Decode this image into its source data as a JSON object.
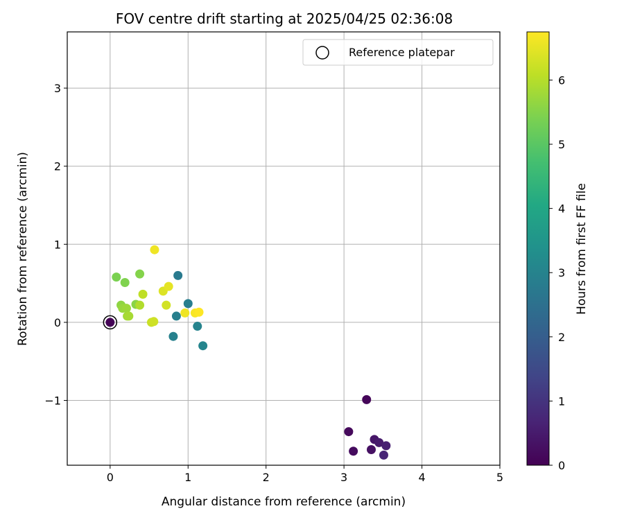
{
  "chart_data": {
    "type": "scatter",
    "title": "FOV centre drift starting at 2025/04/25 02:36:08",
    "xlabel": "Angular distance from reference (arcmin)",
    "ylabel": "Rotation from reference (arcmin)",
    "xlim": [
      -0.55,
      5.0
    ],
    "ylim": [
      -1.83,
      3.72
    ],
    "xticks": [
      0,
      1,
      2,
      3,
      4,
      5
    ],
    "yticks": [
      -1,
      0,
      1,
      2,
      3
    ],
    "xtick_labels": [
      "0",
      "1",
      "2",
      "3",
      "4",
      "5"
    ],
    "ytick_labels": [
      "−1",
      "0",
      "1",
      "2",
      "3"
    ],
    "grid": true,
    "legend": {
      "position": "top-right",
      "entries": [
        "Reference platepar"
      ]
    },
    "colorbar": {
      "label": "Hours from first FF file",
      "colormap": "viridis",
      "range": [
        0,
        6.75
      ],
      "ticks": [
        0,
        1,
        2,
        3,
        4,
        5,
        6
      ],
      "tick_labels": [
        "0",
        "1",
        "2",
        "3",
        "4",
        "5",
        "6"
      ]
    },
    "reference_point": {
      "x": 0,
      "y": 0,
      "value": 0
    },
    "points": [
      {
        "x": 0.0,
        "y": 0.0,
        "value": 0.05
      },
      {
        "x": 3.29,
        "y": -0.99,
        "value": 0.1
      },
      {
        "x": 3.06,
        "y": -1.4,
        "value": 0.15
      },
      {
        "x": 3.12,
        "y": -1.65,
        "value": 0.2
      },
      {
        "x": 3.35,
        "y": -1.63,
        "value": 0.3
      },
      {
        "x": 3.39,
        "y": -1.5,
        "value": 0.4
      },
      {
        "x": 3.45,
        "y": -1.54,
        "value": 0.5
      },
      {
        "x": 3.54,
        "y": -1.58,
        "value": 0.6
      },
      {
        "x": 3.51,
        "y": -1.7,
        "value": 0.7
      },
      {
        "x": 0.87,
        "y": 0.6,
        "value": 2.75
      },
      {
        "x": 1.0,
        "y": 0.24,
        "value": 2.85
      },
      {
        "x": 0.85,
        "y": 0.08,
        "value": 2.9
      },
      {
        "x": 0.81,
        "y": -0.18,
        "value": 2.95
      },
      {
        "x": 1.12,
        "y": -0.05,
        "value": 3.0
      },
      {
        "x": 1.19,
        "y": -0.3,
        "value": 3.05
      },
      {
        "x": 0.08,
        "y": 0.58,
        "value": 5.4
      },
      {
        "x": 0.19,
        "y": 0.51,
        "value": 5.45
      },
      {
        "x": 0.38,
        "y": 0.62,
        "value": 5.5
      },
      {
        "x": 0.33,
        "y": 0.23,
        "value": 5.55
      },
      {
        "x": 0.14,
        "y": 0.22,
        "value": 5.6
      },
      {
        "x": 0.16,
        "y": 0.18,
        "value": 5.7
      },
      {
        "x": 0.21,
        "y": 0.18,
        "value": 5.75
      },
      {
        "x": 0.22,
        "y": 0.08,
        "value": 5.8
      },
      {
        "x": 0.24,
        "y": 0.08,
        "value": 5.85
      },
      {
        "x": 0.38,
        "y": 0.22,
        "value": 5.95
      },
      {
        "x": 0.42,
        "y": 0.36,
        "value": 6.1
      },
      {
        "x": 0.53,
        "y": 0.0,
        "value": 6.2
      },
      {
        "x": 0.56,
        "y": 0.01,
        "value": 6.25
      },
      {
        "x": 0.72,
        "y": 0.22,
        "value": 6.3
      },
      {
        "x": 0.68,
        "y": 0.4,
        "value": 6.4
      },
      {
        "x": 0.75,
        "y": 0.46,
        "value": 6.5
      },
      {
        "x": 0.57,
        "y": 0.93,
        "value": 6.6
      },
      {
        "x": 0.96,
        "y": 0.12,
        "value": 6.6
      },
      {
        "x": 1.09,
        "y": 0.12,
        "value": 6.7
      },
      {
        "x": 1.14,
        "y": 0.13,
        "value": 6.75
      }
    ]
  }
}
